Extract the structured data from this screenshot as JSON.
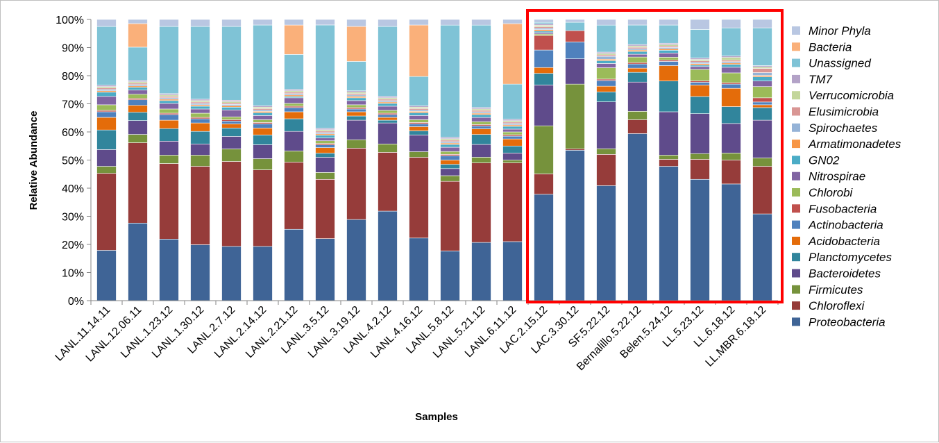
{
  "chart_data": {
    "type": "bar",
    "stacked": true,
    "percent_stacked": true,
    "xlabel": "Samples",
    "ylabel": "Relative Abundance",
    "ylim": [
      0,
      100
    ],
    "yticks": [
      "0%",
      "10%",
      "20%",
      "30%",
      "40%",
      "50%",
      "60%",
      "70%",
      "80%",
      "90%",
      "100%"
    ],
    "grid": false,
    "legend_position": "right",
    "categories": [
      "LANL.11.14.11",
      "LANL.12.06.11",
      "LANL.1.23.12",
      "LANL.1.30.12",
      "LANL.2.7.12",
      "LANL.2.14.12",
      "LANL.2.21.12",
      "LANL.3.5.12",
      "LANL.3.19.12",
      "LANL.4.2.12",
      "LANL.4.16.12",
      "LANL.5.8.12",
      "LANL.5.21.12",
      "LANL.6.11.12",
      "LAC.2.15.12",
      "LAC.3.30.12",
      "SF.5.22.12",
      "Bernalillo.5.22.12",
      "Belen.5.24.12",
      "LL.5.23.12",
      "LL.6.18.12",
      "LL.MBR.6.18.12"
    ],
    "highlight": {
      "from": "LAC.2.15.12",
      "to": "LL.MBR.6.18.12",
      "color": "#ff0000"
    },
    "series": [
      {
        "name": "Proteobacteria",
        "color": "#3f6496",
        "values": [
          18,
          28,
          22,
          20,
          19.5,
          19.5,
          25.5,
          22.5,
          29,
          32,
          22.5,
          17.5,
          20.5,
          21,
          36.5,
          53.5,
          40.5,
          60,
          48,
          42.5,
          41.5,
          31
        ]
      },
      {
        "name": "Chloroflexi",
        "color": "#963c3a",
        "values": [
          27.5,
          29,
          27,
          28,
          30.5,
          27.5,
          24,
          21.5,
          25.5,
          21,
          29,
          24.5,
          28,
          28,
          7,
          0.5,
          11,
          5,
          2.5,
          7,
          8.5,
          17
        ]
      },
      {
        "name": "Firmicutes",
        "color": "#76923c",
        "values": [
          2.5,
          3,
          3,
          4,
          4.5,
          4,
          4,
          2.5,
          3,
          3,
          2,
          2,
          2,
          1,
          16.5,
          23,
          2,
          3,
          1.5,
          2,
          2.5,
          3
        ]
      },
      {
        "name": "Bacteroidetes",
        "color": "#5f4b8b",
        "values": [
          6,
          5,
          5,
          4,
          4.5,
          5,
          7,
          5.5,
          7,
          7.5,
          6,
          2.5,
          4.5,
          2.5,
          14,
          9,
          16.5,
          10.5,
          15.5,
          14,
          10.5,
          13.5
        ]
      },
      {
        "name": "Planctomycetes",
        "color": "#31859c",
        "values": [
          7,
          3,
          4.5,
          4.5,
          3,
          3.5,
          4.5,
          1.5,
          1.5,
          1,
          1.5,
          1.5,
          3.5,
          2.5,
          4,
          0,
          3.5,
          3.5,
          11,
          6,
          6,
          4.5
        ]
      },
      {
        "name": "Acidobacteria",
        "color": "#e46c0a",
        "values": [
          4.5,
          2.5,
          3,
          3,
          1.5,
          2.5,
          2.5,
          2,
          1.5,
          1,
          1.5,
          1.5,
          2,
          2.5,
          2,
          0,
          2,
          1.5,
          5.5,
          4,
          6.5,
          1
        ]
      },
      {
        "name": "Actinobacteria",
        "color": "#4f81bd",
        "values": [
          2,
          2,
          2,
          1.5,
          1,
          1.5,
          1.5,
          1,
          1,
          1,
          1,
          1.5,
          1,
          1,
          6,
          6,
          2,
          1.5,
          1.5,
          1,
          1.5,
          1
        ]
      },
      {
        "name": "Fusobacteria",
        "color": "#c0504d",
        "values": [
          0.5,
          0.5,
          0.5,
          0.5,
          0.5,
          0.5,
          0.5,
          0.5,
          0.5,
          0.5,
          0.5,
          0.5,
          0.5,
          0.5,
          5,
          4,
          0.5,
          0.5,
          0.5,
          0.5,
          0.5,
          1.5
        ]
      },
      {
        "name": "Chlorobi",
        "color": "#9bbb59",
        "values": [
          2,
          1.5,
          1.5,
          1.5,
          1,
          1,
          1,
          1,
          1,
          1,
          1,
          1,
          1,
          1,
          0.5,
          0,
          4,
          2,
          1,
          4,
          3.5,
          4
        ]
      },
      {
        "name": "Nitrospirae",
        "color": "#8064a2",
        "values": [
          3,
          1.5,
          2,
          1.5,
          2.5,
          1.5,
          2,
          1,
          1.5,
          1.5,
          1.5,
          1.5,
          1.5,
          1,
          0.5,
          0,
          1.5,
          1,
          1.5,
          1,
          2,
          2
        ]
      },
      {
        "name": "GN02",
        "color": "#4bacc6",
        "values": [
          1.5,
          1,
          1,
          1,
          1,
          1,
          0.5,
          1,
          1,
          1,
          1,
          1,
          1,
          1,
          0.5,
          0,
          1,
          1,
          1,
          0.5,
          1,
          1.5
        ]
      },
      {
        "name": "Armatimonadetes",
        "color": "#f79646",
        "values": [
          0.5,
          0.5,
          0.5,
          0.5,
          0.5,
          0.5,
          0.5,
          0.5,
          0.5,
          0.5,
          0.5,
          0.5,
          0.5,
          0.5,
          0.5,
          0,
          0.5,
          0.5,
          0.5,
          0.5,
          0.5,
          0.5
        ]
      },
      {
        "name": "Spirochaetes",
        "color": "#95b3d7",
        "values": [
          0.5,
          0.5,
          0.5,
          0.5,
          0.5,
          0.5,
          0.5,
          0.5,
          0.5,
          0.5,
          0.5,
          0.5,
          0.5,
          0.5,
          0.5,
          0,
          1,
          0.5,
          0.5,
          0.5,
          0.5,
          1
        ]
      },
      {
        "name": "Elusimicrobia",
        "color": "#d99694",
        "values": [
          0.5,
          0.5,
          0.5,
          0.5,
          0.5,
          0.5,
          0.5,
          0.5,
          0.5,
          0.5,
          0.5,
          0.5,
          0.5,
          0.5,
          0.5,
          0,
          0.5,
          0.5,
          0.5,
          0.5,
          0.5,
          1.5
        ]
      },
      {
        "name": "Verrucomicrobia",
        "color": "#c3d69b",
        "values": [
          0.5,
          0.5,
          0.5,
          0.5,
          0.5,
          0.5,
          0.5,
          0.5,
          0.5,
          0.5,
          0.5,
          0.5,
          0.5,
          0.5,
          0.5,
          0,
          0.5,
          0.5,
          0.5,
          0.5,
          1,
          0.5
        ]
      },
      {
        "name": "TM7",
        "color": "#b3a2c7",
        "values": [
          0.5,
          0.5,
          0.5,
          0.5,
          0.5,
          0.5,
          0.5,
          0.5,
          0.5,
          0.5,
          0.5,
          0.5,
          0.5,
          0.5,
          0.5,
          0,
          0.5,
          0.5,
          0.5,
          0.5,
          0.5,
          0.5
        ]
      },
      {
        "name": "Unassigned",
        "color": "#7fc3d6",
        "values": [
          21,
          12,
          24,
          26,
          26.5,
          29,
          12.5,
          37.5,
          10.5,
          25,
          10.5,
          39.5,
          29,
          12.5,
          0.5,
          3,
          9.5,
          7,
          6.5,
          10,
          10,
          13.5
        ]
      },
      {
        "name": "Bacteria",
        "color": "#fab07a",
        "values": [
          0,
          8.5,
          0,
          0,
          0,
          0,
          10.5,
          0,
          12.5,
          0,
          18.5,
          0,
          0,
          21.5,
          0,
          0,
          0,
          0,
          0,
          0,
          0,
          0
        ]
      },
      {
        "name": "Minor Phyla",
        "color": "#b9c7e2",
        "values": [
          2.5,
          1.5,
          2.5,
          2.5,
          2.5,
          2,
          2,
          2,
          2.5,
          2.5,
          2,
          2,
          2,
          1.5,
          1,
          1,
          2,
          2,
          2,
          3.5,
          3,
          3
        ]
      }
    ]
  }
}
